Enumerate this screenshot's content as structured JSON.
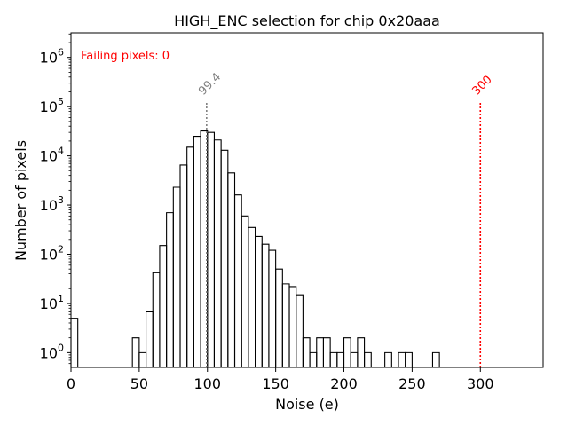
{
  "chart_data": {
    "type": "histogram",
    "title": "HIGH_ENC selection for chip 0x20aaa",
    "xlabel": "Noise (e)",
    "ylabel": "Number of pixels",
    "xlim": [
      0,
      346
    ],
    "ylim_log10": [
      -0.3,
      6.5
    ],
    "yscale": "log",
    "grid": false,
    "xticks": [
      0,
      50,
      100,
      150,
      200,
      250,
      300
    ],
    "yticks": [
      {
        "exp": 0,
        "base": "10",
        "power": "0"
      },
      {
        "exp": 1,
        "base": "10",
        "power": "1"
      },
      {
        "exp": 2,
        "base": "10",
        "power": "2"
      },
      {
        "exp": 3,
        "base": "10",
        "power": "3"
      },
      {
        "exp": 4,
        "base": "10",
        "power": "4"
      },
      {
        "exp": 5,
        "base": "10",
        "power": "5"
      },
      {
        "exp": 6,
        "base": "10",
        "power": "6"
      }
    ],
    "bin_width": 5,
    "bins": [
      {
        "x": 0,
        "count": 5
      },
      {
        "x": 45,
        "count": 2
      },
      {
        "x": 50,
        "count": 1
      },
      {
        "x": 55,
        "count": 7
      },
      {
        "x": 60,
        "count": 42
      },
      {
        "x": 65,
        "count": 150
      },
      {
        "x": 70,
        "count": 700
      },
      {
        "x": 75,
        "count": 2300
      },
      {
        "x": 80,
        "count": 6500
      },
      {
        "x": 85,
        "count": 15000
      },
      {
        "x": 90,
        "count": 25000
      },
      {
        "x": 95,
        "count": 32000
      },
      {
        "x": 100,
        "count": 30000
      },
      {
        "x": 105,
        "count": 21000
      },
      {
        "x": 110,
        "count": 13000
      },
      {
        "x": 115,
        "count": 4500
      },
      {
        "x": 120,
        "count": 1600
      },
      {
        "x": 125,
        "count": 600
      },
      {
        "x": 130,
        "count": 350
      },
      {
        "x": 135,
        "count": 230
      },
      {
        "x": 140,
        "count": 160
      },
      {
        "x": 145,
        "count": 120
      },
      {
        "x": 150,
        "count": 50
      },
      {
        "x": 155,
        "count": 25
      },
      {
        "x": 160,
        "count": 22
      },
      {
        "x": 165,
        "count": 15
      },
      {
        "x": 170,
        "count": 2
      },
      {
        "x": 175,
        "count": 1
      },
      {
        "x": 180,
        "count": 2
      },
      {
        "x": 185,
        "count": 2
      },
      {
        "x": 190,
        "count": 1
      },
      {
        "x": 195,
        "count": 1
      },
      {
        "x": 200,
        "count": 2
      },
      {
        "x": 205,
        "count": 1
      },
      {
        "x": 210,
        "count": 2
      },
      {
        "x": 215,
        "count": 1
      },
      {
        "x": 230,
        "count": 1
      },
      {
        "x": 240,
        "count": 1
      },
      {
        "x": 245,
        "count": 1
      },
      {
        "x": 265,
        "count": 1
      }
    ],
    "vlines": [
      {
        "name": "mean-noise-line",
        "x": 99.4,
        "label": "99.4",
        "color": "#808080",
        "top_count": 120000
      },
      {
        "name": "threshold-line",
        "x": 300,
        "label": "300",
        "color": "#ff0000",
        "top_count": 120000
      }
    ],
    "annotation": {
      "text": "Failing pixels: 0",
      "color": "#ff0000",
      "placement": "top-left"
    }
  }
}
